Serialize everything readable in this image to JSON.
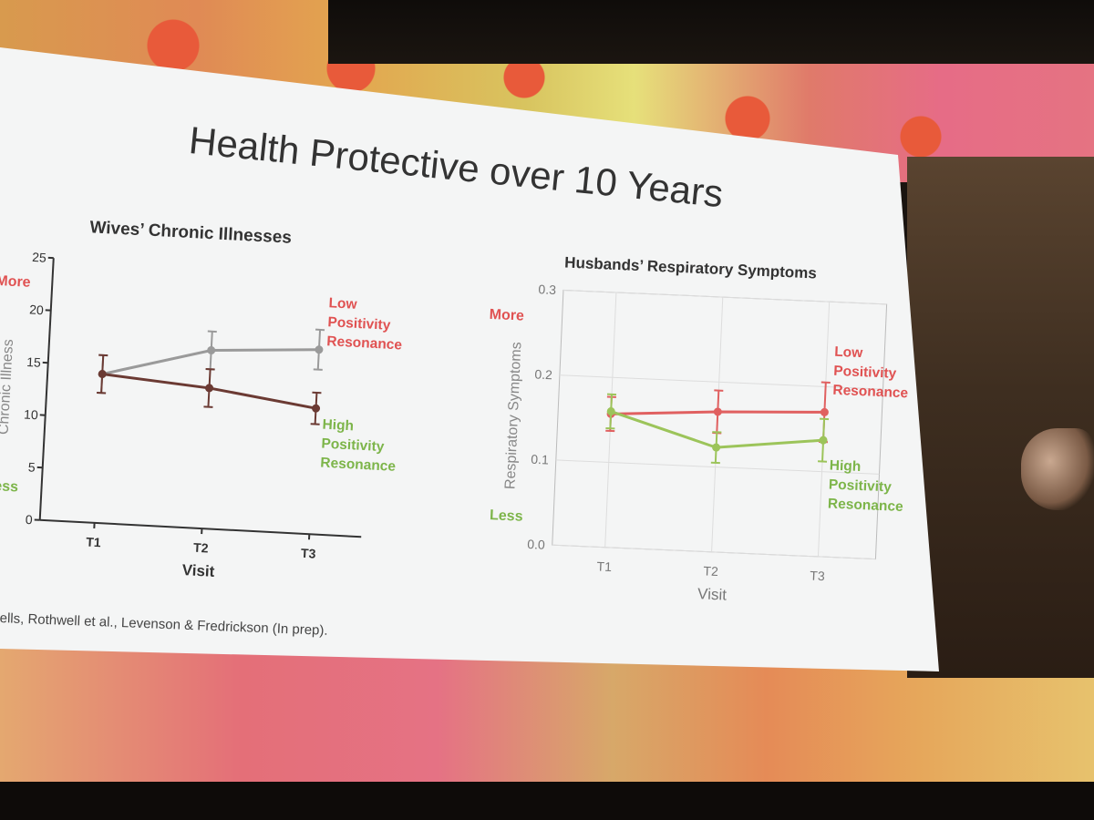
{
  "slide": {
    "title": "Health Protective over 10 Years",
    "citation": "ells, Rothwell et al., Levenson & Fredrickson (In prep)."
  },
  "colors": {
    "low": "#e05252",
    "high": "#7db54a",
    "grey_line": "#9a9a9a",
    "dark_line": "#6b3a33",
    "husbands_low_line": "#e06060",
    "husbands_high_line": "#9cc45a"
  },
  "chart_data": [
    {
      "type": "line",
      "title": "Wives’ Chronic Illnesses",
      "xlabel": "Visit",
      "ylabel": "Chronic Illness",
      "categories": [
        "T1",
        "T2",
        "T3"
      ],
      "ylim": [
        0,
        25
      ],
      "yticks": [
        "0",
        "5",
        "10",
        "15",
        "20",
        "25"
      ],
      "grid": false,
      "side_labels": {
        "more": "More",
        "less": "Less"
      },
      "series": [
        {
          "name": "Low Positivity Resonance",
          "label_lines": [
            "Low",
            "Positivity",
            "Resonance"
          ],
          "values": [
            14.2,
            17.0,
            17.6
          ],
          "errors": [
            1.8,
            1.8,
            1.9
          ],
          "line_color": "#9a9a9a",
          "label_color": "#e05252"
        },
        {
          "name": "High Positivity Resonance",
          "label_lines": [
            "High",
            "Positivity",
            "Resonance"
          ],
          "values": [
            14.2,
            13.4,
            12.0
          ],
          "errors": [
            1.8,
            1.8,
            1.5
          ],
          "line_color": "#6b3a33",
          "label_color": "#7db54a"
        }
      ]
    },
    {
      "type": "line",
      "title": "Husbands’ Respiratory Symptoms",
      "xlabel": "Visit",
      "ylabel": "Respiratory Symptoms",
      "categories": [
        "T1",
        "T2",
        "T3"
      ],
      "ylim": [
        0,
        0.3
      ],
      "yticks": [
        "0.0",
        "0.1",
        "0.2",
        "0.3"
      ],
      "grid": true,
      "side_labels": {
        "more": "More",
        "less": "Less"
      },
      "series": [
        {
          "name": "Low Positivity Resonance",
          "label_lines": [
            "Low",
            "Positivity",
            "Resonance"
          ],
          "values": [
            0.157,
            0.165,
            0.17
          ],
          "errors": [
            0.02,
            0.025,
            0.035
          ],
          "line_color": "#e06060",
          "label_color": "#e05252"
        },
        {
          "name": "High Positivity Resonance",
          "label_lines": [
            "High",
            "Positivity",
            "Resonance"
          ],
          "values": [
            0.16,
            0.123,
            0.137
          ],
          "errors": [
            0.02,
            0.018,
            0.025
          ],
          "line_color": "#9cc45a",
          "label_color": "#7db54a"
        }
      ]
    }
  ]
}
